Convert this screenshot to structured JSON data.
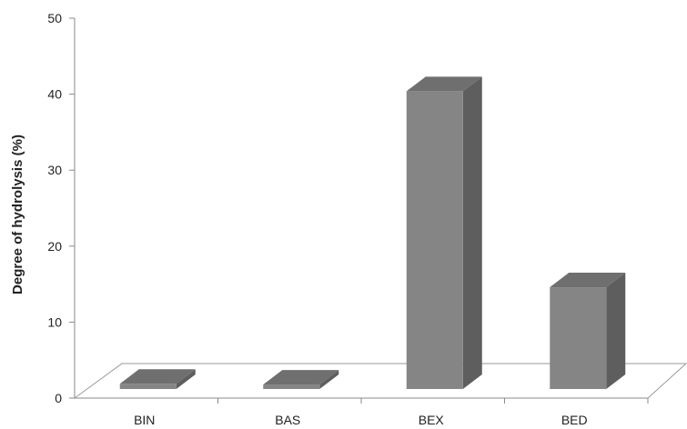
{
  "chart_data": {
    "type": "bar",
    "style": "3d-column",
    "categories": [
      "BIN",
      "BAS",
      "BEX",
      "BED"
    ],
    "values": [
      3.8,
      3.7,
      42.3,
      16.5
    ],
    "title": "",
    "xlabel": "",
    "ylabel": "Degree of hydrolysis (%)",
    "ylim": [
      0,
      50
    ],
    "yticks": [
      "0",
      "10",
      "20",
      "30",
      "40",
      "50"
    ],
    "grid": false,
    "legend": "none",
    "colors": {
      "bar_front": "#858585",
      "bar_side": "#5e5e5e",
      "bar_top": "#6f6f6f",
      "axis": "#8a8a8a",
      "floor": "#9a9a9a"
    }
  }
}
